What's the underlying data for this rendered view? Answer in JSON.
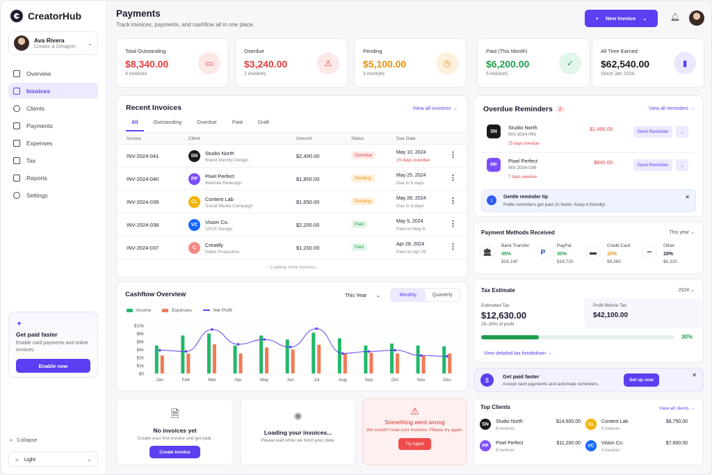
{
  "brand": {
    "name": "CreatorHub"
  },
  "user": {
    "name": "Ava Rivera",
    "role": "Creator & Designer"
  },
  "nav": [
    {
      "label": "Overview",
      "icon": "grid-icon"
    },
    {
      "label": "Invoices",
      "icon": "document-icon",
      "active": true
    },
    {
      "label": "Clients",
      "icon": "users-icon"
    },
    {
      "label": "Payments",
      "icon": "card-icon"
    },
    {
      "label": "Expenses",
      "icon": "receipt-icon"
    },
    {
      "label": "Tax",
      "icon": "tax-icon"
    },
    {
      "label": "Reports",
      "icon": "chart-icon"
    },
    {
      "label": "Settings",
      "icon": "gear-icon"
    }
  ],
  "sidebar_promo": {
    "title": "Get paid faster",
    "text": "Enable card payments and online invoices.",
    "button": "Enable now"
  },
  "collapse": "Collapse",
  "theme": "Light",
  "header": {
    "title": "Payments",
    "subtitle": "Track invoices, payments, and cashflow all in one place.",
    "new_invoice": "New Invoice"
  },
  "stats": [
    {
      "label": "Total Outstanding",
      "value": "$8,340.00",
      "sub": "4 invoices",
      "color": "#e03d3d",
      "bg": "#fde8e8",
      "icon": "wallet-icon"
    },
    {
      "label": "Overdue",
      "value": "$3,240.00",
      "sub": "2 invoices",
      "color": "#e03d3d",
      "bg": "#fde8e8",
      "icon": "warning-icon"
    },
    {
      "label": "Pending",
      "value": "$5,100.00",
      "sub": "3 invoices",
      "color": "#e8900c",
      "bg": "#fdf0dd",
      "icon": "clock-icon"
    },
    {
      "label": "Paid (This Month)",
      "value": "$6,200.00",
      "sub": "6 invoices",
      "color": "#1f9d4c",
      "bg": "#e3f6ea",
      "icon": "check-icon"
    },
    {
      "label": "All Time Earned",
      "value": "$62,540.00",
      "sub": "Since Jan 2024",
      "color": "#16161f",
      "bg": "#ece8ff",
      "icon": "bar-chart-icon"
    }
  ],
  "recent": {
    "title": "Recent Invoices",
    "view_all": "View all invoices →",
    "tabs": [
      "All",
      "Outstanding",
      "Overdue",
      "Paid",
      "Draft"
    ],
    "columns": [
      "Invoice",
      "Client",
      "Amount",
      "Status",
      "Due Date"
    ],
    "rows": [
      {
        "id": "INV-2024-041",
        "initials": "SN",
        "client": "Studio North",
        "desc": "Brand Identity Design",
        "amount": "$2,400.00",
        "status": "Overdue",
        "date": "May 10, 2024",
        "due": "15 days overdue",
        "avbg": "#1a1a1a"
      },
      {
        "id": "INV-2024-040",
        "initials": "PP",
        "client": "Pixel Perfect",
        "desc": "Website Redesign",
        "amount": "$1,800.00",
        "status": "Pending",
        "date": "May 25, 2024",
        "due": "Due in 5 days",
        "avbg": "#7c4dff"
      },
      {
        "id": "INV-2024-039",
        "initials": "CL",
        "client": "Content Lab",
        "desc": "Social Media Campaign",
        "amount": "$1,650.00",
        "status": "Pending",
        "date": "May 28, 2024",
        "due": "Due in 8 days",
        "avbg": "#f4b400"
      },
      {
        "id": "INV-2024-038",
        "initials": "VC",
        "client": "Vision Co.",
        "desc": "UI/UX Design",
        "amount": "$2,200.00",
        "status": "Paid",
        "date": "May 5, 2024",
        "due": "Paid on May 6",
        "avbg": "#1565ff"
      },
      {
        "id": "INV-2024-037",
        "initials": "C",
        "client": "Creatify",
        "desc": "Video Production",
        "amount": "$1,200.00",
        "status": "Paid",
        "date": "Apr 28, 2024",
        "due": "Paid on Apr 29",
        "avbg": "#f28b82"
      }
    ],
    "loading": "Loading more invoices..."
  },
  "cashflow": {
    "title": "Cashflow Overview",
    "period": "This Year",
    "toggle": [
      "Monthly",
      "Quarterly"
    ]
  },
  "chart_data": {
    "type": "bar",
    "title": "Cashflow Overview",
    "categories": [
      "Jan",
      "Feb",
      "Mar",
      "Apr",
      "May",
      "Jun",
      "Jul",
      "Aug",
      "Sep",
      "Oct",
      "Nov",
      "Dec"
    ],
    "series": [
      {
        "name": "Income",
        "type": "bar",
        "color": "#22b86a",
        "values": [
          5,
          7.5,
          8,
          5,
          7.5,
          6.5,
          8.2,
          6.8,
          5,
          5.5,
          5,
          4.8
        ]
      },
      {
        "name": "Expenses",
        "type": "bar",
        "color": "#f07a55",
        "values": [
          2.5,
          3,
          5.3,
          3,
          4.5,
          4,
          5.2,
          3,
          3.2,
          3,
          2.5,
          3
        ]
      },
      {
        "name": "Net Profit",
        "type": "line",
        "color": "#5b3ff0",
        "values": [
          3.8,
          3.5,
          9,
          5.3,
          6.5,
          4.6,
          9.2,
          3,
          3.5,
          3.8,
          2.5,
          2.3
        ]
      }
    ],
    "yticks": [
      "$0",
      "$1k",
      "$2k",
      "$4k",
      "$6k",
      "$8k",
      "$10k"
    ],
    "ylim": [
      0,
      10
    ]
  },
  "states": {
    "empty": {
      "title": "No invoices yet",
      "sub": "Create your first invoice and get paid.",
      "button": "Create Invoice"
    },
    "loading": {
      "title": "Loading your invoices...",
      "sub": "Please wait while we fetch your data."
    },
    "error": {
      "title": "Something went wrong",
      "sub": "We couldn't load your invoices. Please try again.",
      "button": "Try Again"
    }
  },
  "overdue": {
    "title": "Overdue Reminders",
    "count": "2",
    "view_all": "View all reminders →",
    "items": [
      {
        "initials": "SN",
        "name": "Studio North",
        "id": "INV-2024-041",
        "amount": "$2,400.00",
        "days": "15 days overdue",
        "avbg": "#1a1a1a"
      },
      {
        "initials": "PP",
        "name": "Pixel Perfect",
        "id": "INV-2024-036",
        "amount": "$840.00",
        "days": "7 days overdue",
        "avbg": "#7c4dff"
      }
    ],
    "button": "Send Reminder",
    "tip": {
      "title": "Gentle reminder tip",
      "text": "Polite reminders get paid 2x faster. Keep it friendly!"
    }
  },
  "payment_methods": {
    "title": "Payment Methods Received",
    "period": "This year",
    "items": [
      {
        "name": "Bank Transfer",
        "pct": "45%",
        "amt": "$28,140",
        "icon": "bank-icon"
      },
      {
        "name": "PayPal",
        "pct": "30%",
        "amt": "$18,720",
        "icon": "paypal-icon"
      },
      {
        "name": "Credit Card",
        "pct": "15%",
        "amt": "$9,360",
        "icon": "card-icon"
      },
      {
        "name": "Other",
        "pct": "10%",
        "amt": "$6,320",
        "icon": "more-icon"
      }
    ]
  },
  "tax": {
    "title": "Tax Estimate",
    "year": "2024",
    "est_label": "Estimated Tax",
    "est_value": "$12,630.00",
    "est_sub": "25–30% of profit",
    "pbt_label": "Profit Before Tax",
    "pbt_value": "$42,100.00",
    "progress": 0.3,
    "progress_label": "30%",
    "link": "View detailed tax breakdown →"
  },
  "paid_faster": {
    "title": "Get paid faster",
    "text": "Accept card payments and automate reminders.",
    "button": "Set up now"
  },
  "top_clients": {
    "title": "Top Clients",
    "view_all": "View all clients →",
    "items": [
      {
        "initials": "SN",
        "name": "Studio North",
        "count": "8 invoices",
        "amount": "$14,600.00",
        "avbg": "#1a1a1a"
      },
      {
        "initials": "CL",
        "name": "Content Lab",
        "count": "5 invoices",
        "amount": "$8,750.00",
        "avbg": "#f4b400"
      },
      {
        "initials": "PP",
        "name": "Pixel Perfect",
        "count": "6 invoices",
        "amount": "$11,200.00",
        "avbg": "#7c4dff"
      },
      {
        "initials": "VC",
        "name": "Vision Co.",
        "count": "4 invoices",
        "amount": "$7,600.00",
        "avbg": "#1565ff"
      }
    ]
  }
}
